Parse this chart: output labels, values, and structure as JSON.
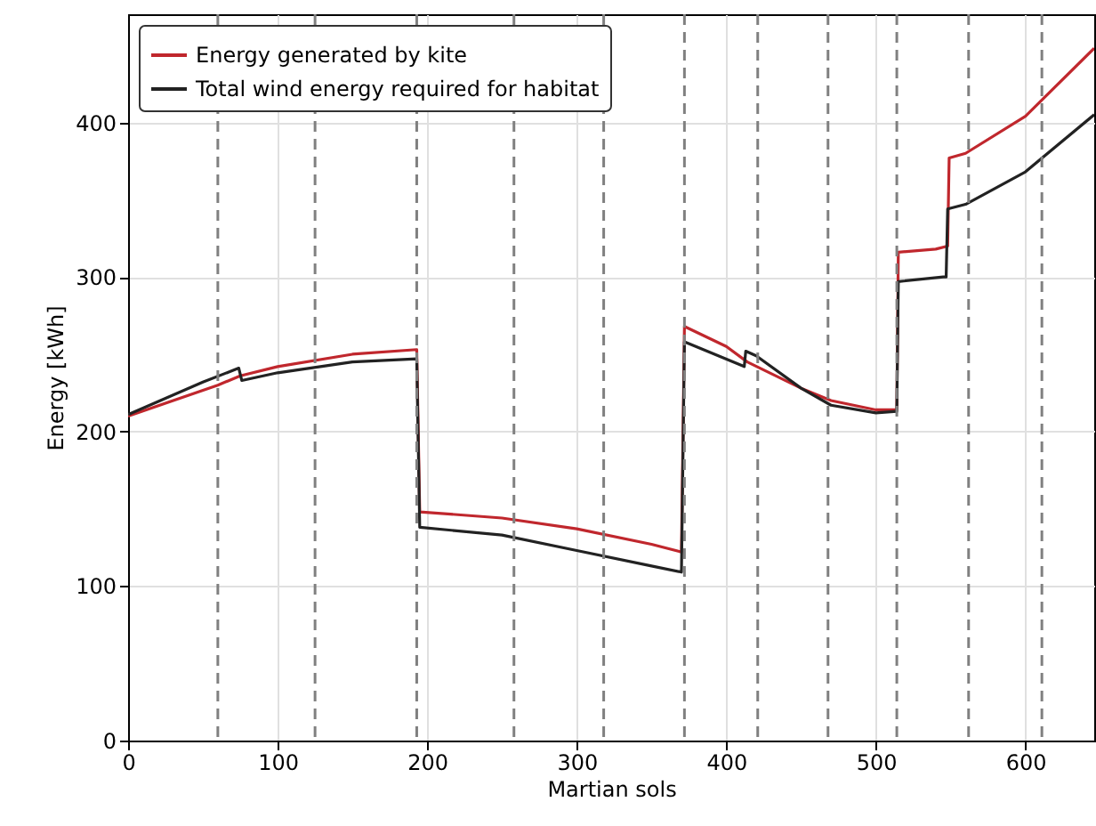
{
  "chart_data": {
    "type": "line",
    "xlabel": "Martian sols",
    "ylabel": "Energy [kWh]",
    "xlim": [
      0,
      646
    ],
    "ylim": [
      0,
      470
    ],
    "xticks": [
      0,
      100,
      200,
      300,
      400,
      500,
      600
    ],
    "yticks": [
      0,
      100,
      200,
      300,
      400
    ],
    "grid": true,
    "legend": "top left",
    "marker": "none",
    "line_style": "solid",
    "series": [
      {
        "name": "Energy generated by kite",
        "color": "#c0272d",
        "x": [
          0,
          60,
          75,
          100,
          150,
          193,
          195,
          250,
          300,
          350,
          370,
          372,
          400,
          414,
          450,
          470,
          500,
          514,
          515,
          540,
          548,
          549,
          560,
          600,
          646
        ],
        "values": [
          210,
          230,
          236,
          242,
          250,
          253,
          148,
          144,
          137,
          127,
          122,
          268,
          255,
          245,
          228,
          220,
          214,
          214,
          316,
          318,
          320,
          377,
          380,
          404,
          448
        ]
      },
      {
        "name": "Total wind energy required for habitat",
        "color": "#222222",
        "x": [
          0,
          50,
          74,
          76,
          100,
          150,
          193,
          195,
          250,
          300,
          350,
          370,
          372,
          412,
          413,
          420,
          450,
          470,
          500,
          514,
          515,
          545,
          547,
          548,
          560,
          600,
          646
        ],
        "values": [
          211,
          232,
          241,
          233,
          238,
          245,
          247,
          138,
          133,
          123,
          113,
          109,
          258,
          242,
          252,
          249,
          228,
          217,
          212,
          213,
          297,
          300,
          300,
          344,
          347,
          368,
          405
        ]
      }
    ],
    "ref_lines": [
      {
        "axis": "x",
        "value": 60,
        "color": "#808080",
        "line_style": "dashed"
      },
      {
        "axis": "x",
        "value": 125,
        "color": "#808080",
        "line_style": "dashed"
      },
      {
        "axis": "x",
        "value": 193,
        "color": "#808080",
        "line_style": "dashed"
      },
      {
        "axis": "x",
        "value": 258,
        "color": "#808080",
        "line_style": "dashed"
      },
      {
        "axis": "x",
        "value": 318,
        "color": "#808080",
        "line_style": "dashed"
      },
      {
        "axis": "x",
        "value": 372,
        "color": "#808080",
        "line_style": "dashed"
      },
      {
        "axis": "x",
        "value": 421,
        "color": "#808080",
        "line_style": "dashed"
      },
      {
        "axis": "x",
        "value": 468,
        "color": "#808080",
        "line_style": "dashed"
      },
      {
        "axis": "x",
        "value": 514,
        "color": "#808080",
        "line_style": "dashed"
      },
      {
        "axis": "x",
        "value": 562,
        "color": "#808080",
        "line_style": "dashed"
      },
      {
        "axis": "x",
        "value": 611,
        "color": "#808080",
        "line_style": "dashed"
      }
    ]
  }
}
